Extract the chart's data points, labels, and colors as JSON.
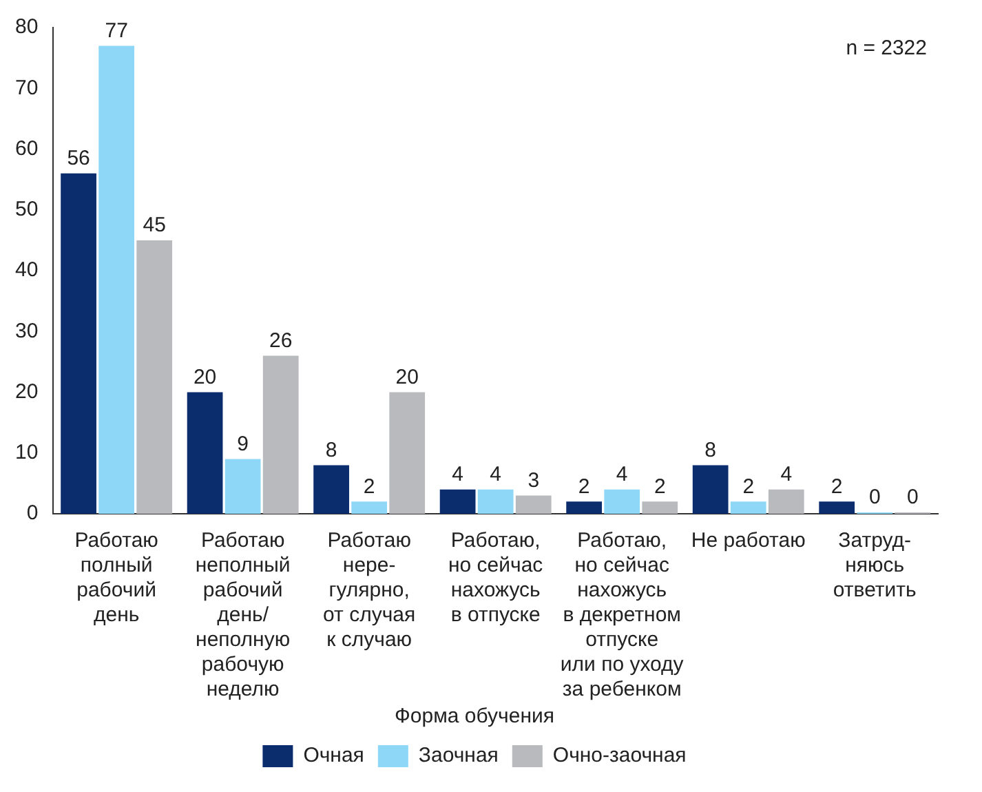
{
  "chart_data": {
    "type": "bar",
    "categories": [
      "Работаю\nполный\nрабочий\nдень",
      "Работаю\nнеполный\nрабочий\nдень/\nнеполную\nрабочую\nнеделю",
      "Работаю\nнере-\nгулярно,\nот случая\nк случаю",
      "Работаю,\nно сейчас\nнахожусь\nв отпуске",
      "Работаю,\nно сейчас\nнахожусь\nв декретном\nотпуске\nили по уходу\nза ребенком",
      "Не работаю",
      "Затруд-\nняюсь\nответить"
    ],
    "series": [
      {
        "name": "Очная",
        "color": "#0b2d6e",
        "values": [
          56,
          20,
          8,
          4,
          2,
          8,
          2
        ]
      },
      {
        "name": "Заочная",
        "color": "#8fd7f7",
        "values": [
          77,
          9,
          2,
          4,
          4,
          2,
          0
        ]
      },
      {
        "name": "Очно-заочная",
        "color": "#b9babe",
        "values": [
          45,
          26,
          20,
          3,
          2,
          4,
          0
        ]
      }
    ],
    "legend_title": "Форма обучения",
    "legend": "bottom",
    "ylim": [
      0,
      80
    ],
    "yticks": [
      0,
      10,
      20,
      30,
      40,
      50,
      60,
      70,
      80
    ],
    "grid": false,
    "data_labels": true,
    "annotations": [
      "n = 2322"
    ]
  }
}
